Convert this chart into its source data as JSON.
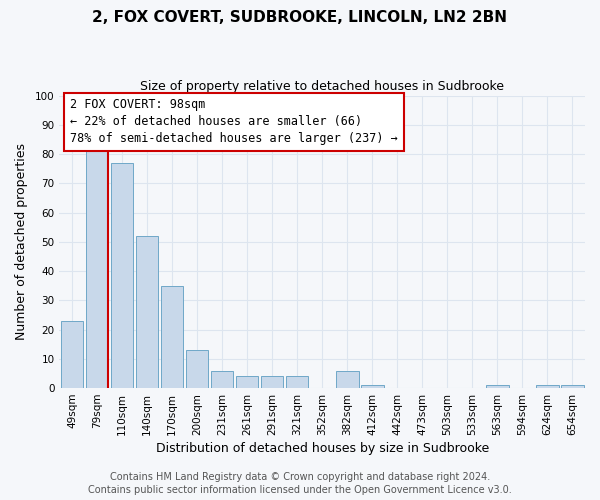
{
  "title": "2, FOX COVERT, SUDBROOKE, LINCOLN, LN2 2BN",
  "subtitle": "Size of property relative to detached houses in Sudbrooke",
  "xlabel": "Distribution of detached houses by size in Sudbrooke",
  "ylabel": "Number of detached properties",
  "bar_labels": [
    "49sqm",
    "79sqm",
    "110sqm",
    "140sqm",
    "170sqm",
    "200sqm",
    "231sqm",
    "261sqm",
    "291sqm",
    "321sqm",
    "352sqm",
    "382sqm",
    "412sqm",
    "442sqm",
    "473sqm",
    "503sqm",
    "533sqm",
    "563sqm",
    "594sqm",
    "624sqm",
    "654sqm"
  ],
  "bar_values": [
    23,
    82,
    77,
    52,
    35,
    13,
    6,
    4,
    4,
    4,
    0,
    6,
    1,
    0,
    0,
    0,
    0,
    1,
    0,
    1,
    1
  ],
  "bar_color": "#c8d8ea",
  "bar_edge_color": "#6fa8c8",
  "ylim": [
    0,
    100
  ],
  "yticks": [
    0,
    10,
    20,
    30,
    40,
    50,
    60,
    70,
    80,
    90,
    100
  ],
  "vline_color": "#cc0000",
  "vline_x": 1.45,
  "annotation_title": "2 FOX COVERT: 98sqm",
  "annotation_line1": "← 22% of detached houses are smaller (66)",
  "annotation_line2": "78% of semi-detached houses are larger (237) →",
  "annotation_box_facecolor": "#ffffff",
  "annotation_box_edgecolor": "#cc0000",
  "footer1": "Contains HM Land Registry data © Crown copyright and database right 2024.",
  "footer2": "Contains public sector information licensed under the Open Government Licence v3.0.",
  "background_color": "#f5f7fa",
  "grid_color": "#dde5ef",
  "title_fontsize": 11,
  "subtitle_fontsize": 9,
  "xlabel_fontsize": 9,
  "ylabel_fontsize": 9,
  "tick_fontsize": 7.5,
  "footer_fontsize": 7,
  "annotation_fontsize": 8.5
}
